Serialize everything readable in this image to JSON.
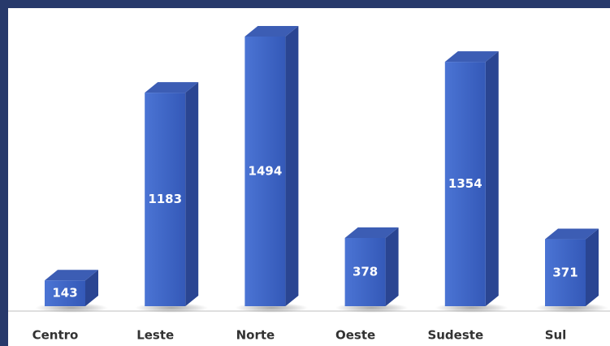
{
  "chart_data": {
    "type": "bar3d",
    "categories": [
      "Centro",
      "Leste",
      "Norte",
      "Oeste",
      "Sudeste",
      "Sul"
    ],
    "values": [
      143,
      1183,
      1494,
      378,
      1354,
      371
    ],
    "color": "#3f66c8"
  }
}
